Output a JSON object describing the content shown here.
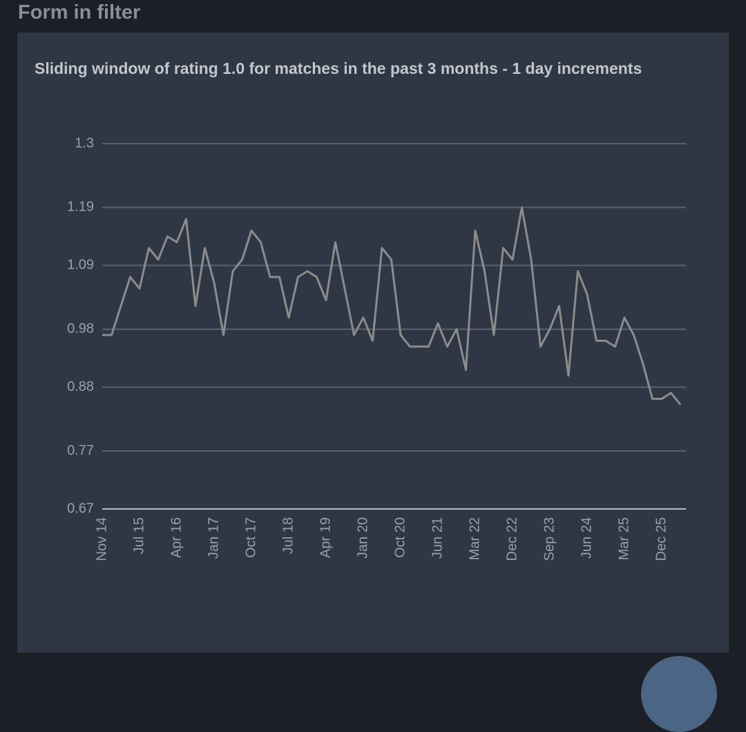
{
  "header": {
    "title": "Form in filter"
  },
  "chart_data": {
    "type": "line",
    "title": "Sliding window of rating 1.0 for matches in the past 3 months - 1 day increments",
    "categories": [
      "Nov 14",
      null,
      null,
      null,
      "Jul 15",
      null,
      null,
      null,
      "Apr 16",
      null,
      null,
      null,
      "Jan 17",
      null,
      null,
      null,
      "Oct 17",
      null,
      null,
      null,
      "Jul 18",
      null,
      null,
      null,
      "Apr 19",
      null,
      null,
      null,
      "Jan 20",
      null,
      null,
      null,
      "Oct 20",
      null,
      null,
      null,
      "Jun 21",
      null,
      null,
      null,
      "Mar 22",
      null,
      null,
      null,
      "Dec 22",
      null,
      null,
      null,
      "Sep 23",
      null,
      null,
      null,
      "Jun 24",
      null,
      null,
      null,
      "Mar 25",
      null,
      null,
      null,
      "Dec 25",
      null,
      null
    ],
    "values": [
      0.97,
      0.97,
      1.02,
      1.07,
      1.05,
      1.12,
      1.1,
      1.14,
      1.13,
      1.17,
      1.02,
      1.12,
      1.06,
      0.97,
      1.08,
      1.1,
      1.15,
      1.13,
      1.07,
      1.07,
      1.0,
      1.07,
      1.08,
      1.07,
      1.03,
      1.13,
      1.05,
      0.97,
      1.0,
      0.96,
      1.12,
      1.1,
      0.97,
      0.95,
      0.95,
      0.95,
      0.99,
      0.95,
      0.98,
      0.91,
      1.15,
      1.08,
      0.97,
      1.12,
      1.1,
      1.19,
      1.1,
      0.95,
      0.98,
      1.02,
      0.9,
      1.08,
      1.04,
      0.96,
      0.96,
      0.95,
      1.0,
      0.97,
      0.92,
      0.86,
      0.86,
      0.87,
      0.85
    ],
    "color": "#8c8c8c",
    "ylim": [
      0.67,
      1.3
    ],
    "yticks": [
      0.67,
      0.77,
      0.88,
      0.98,
      1.09,
      1.19,
      1.3
    ],
    "grid": true
  }
}
